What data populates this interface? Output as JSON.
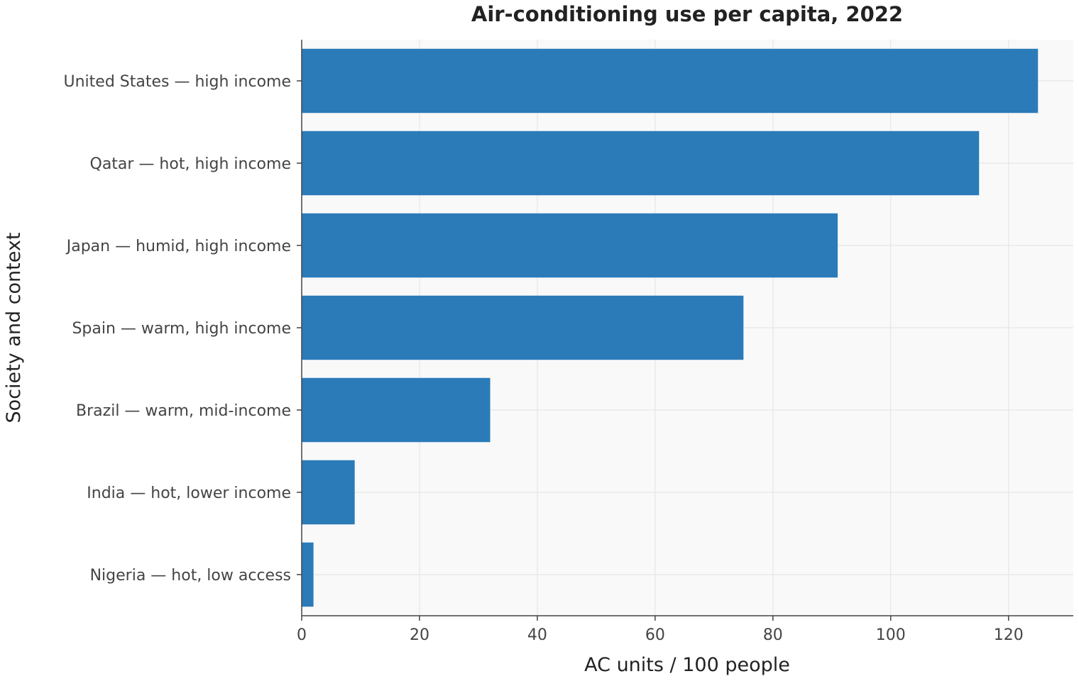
{
  "chart_data": {
    "type": "bar",
    "orientation": "horizontal",
    "title": "Air-conditioning use per capita, 2022",
    "xlabel": "AC units / 100 people",
    "ylabel": "Society and context",
    "categories": [
      "United States — high income",
      "Qatar — hot, high income",
      "Japan — humid, high income",
      "Spain — warm, high income",
      "Brazil — warm, mid-income",
      "India — hot, lower income",
      "Nigeria — hot, low access"
    ],
    "values": [
      125,
      115,
      91,
      75,
      32,
      9,
      2
    ],
    "xlim": [
      0,
      131
    ],
    "xticks": [
      0,
      20,
      40,
      60,
      80,
      100,
      120
    ],
    "grid": true,
    "legend": "none",
    "colors": {
      "bar": "#2b7bb9",
      "plot_background": "#f9f9f9",
      "grid": "#e6e6e6"
    }
  }
}
